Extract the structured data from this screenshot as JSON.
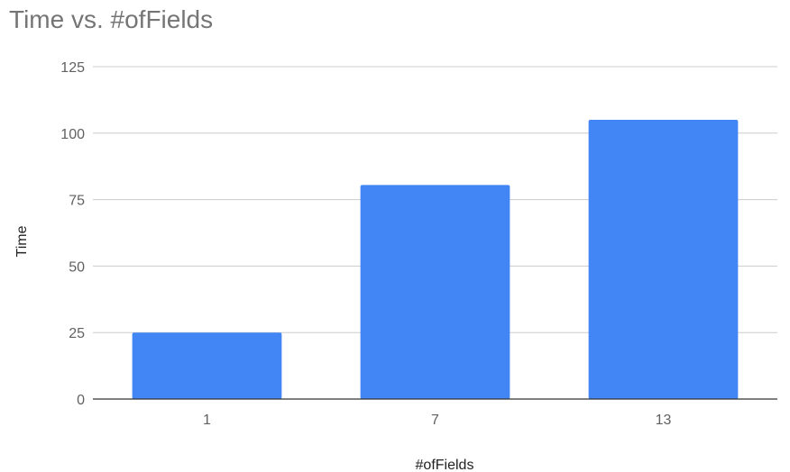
{
  "chart_data": {
    "type": "bar",
    "title": "Time vs. #ofFields",
    "xlabel": "#ofFields",
    "ylabel": "Time",
    "categories": [
      "1",
      "7",
      "13"
    ],
    "values": [
      25,
      80.5,
      105
    ],
    "ylim": [
      0,
      125
    ],
    "yticks": [
      "0",
      "25",
      "50",
      "75",
      "100",
      "125"
    ],
    "grid": true,
    "legend": "none",
    "bar_color": "#4285f4",
    "grid_color": "#cccccc",
    "axis_color": "#333333"
  }
}
